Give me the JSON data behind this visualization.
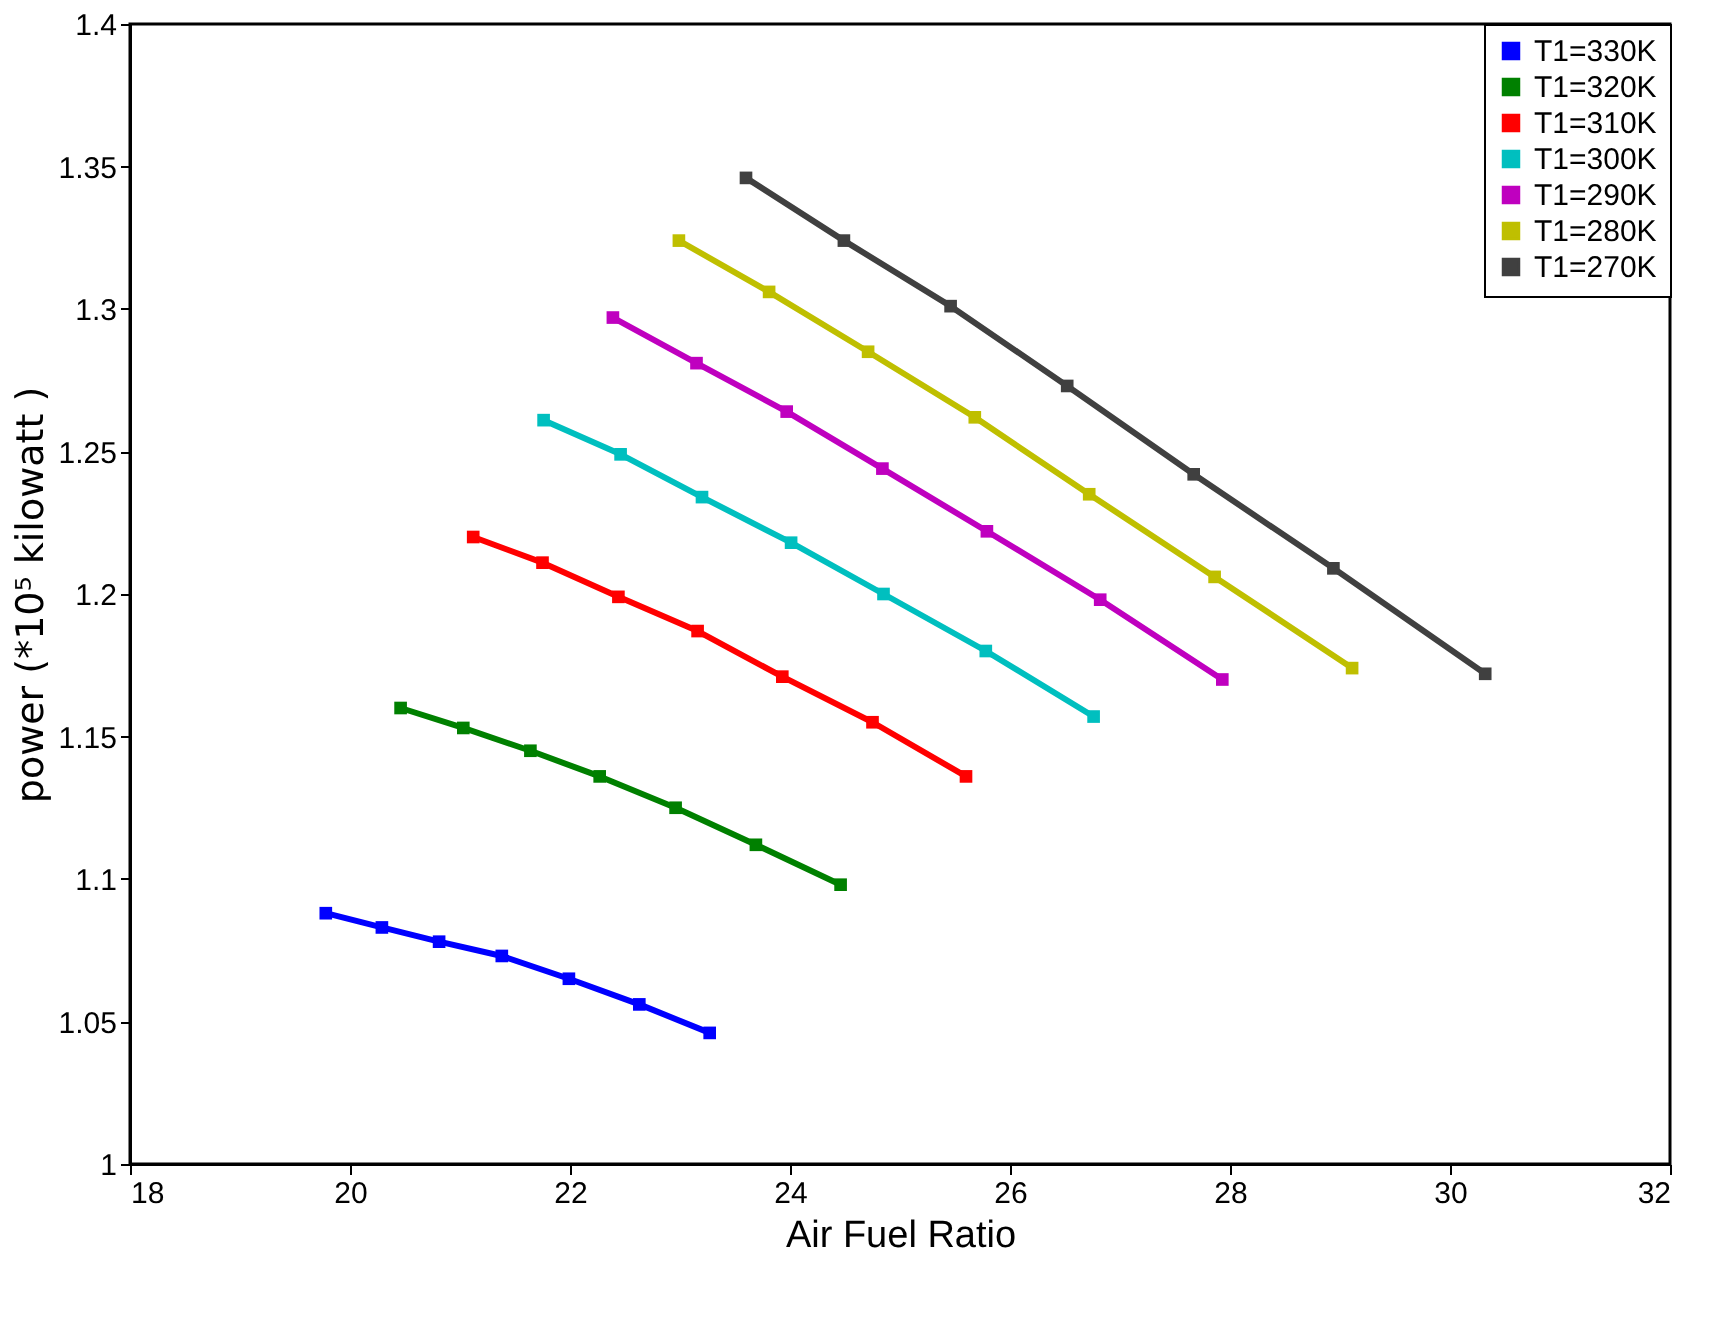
{
  "chart_data": {
    "type": "line",
    "xlabel": "Air Fuel Ratio",
    "ylabel": "power (*10⁵ kilowatt )",
    "xlim": [
      18,
      32
    ],
    "xticks": [
      18,
      20,
      22,
      24,
      26,
      28,
      30,
      32
    ],
    "ylim": [
      1,
      1.4
    ],
    "yticks": [
      1,
      1.05,
      1.1,
      1.15,
      1.2,
      1.25,
      1.3,
      1.35,
      1.4
    ],
    "grid": false,
    "legend": "top right",
    "marker": "square",
    "line_style": "solid",
    "series": [
      {
        "name": "T1=330K",
        "color": "#0000ff",
        "x": [
          19.78,
          20.29,
          20.81,
          21.38,
          21.99,
          22.63,
          23.27
        ],
        "values": [
          1.088,
          1.083,
          1.078,
          1.073,
          1.065,
          1.056,
          1.046
        ]
      },
      {
        "name": "T1=320K",
        "color": "#008000",
        "x": [
          20.46,
          21.03,
          21.64,
          22.27,
          22.96,
          23.69,
          24.46
        ],
        "values": [
          1.16,
          1.153,
          1.145,
          1.136,
          1.125,
          1.112,
          1.098
        ]
      },
      {
        "name": "T1=310K",
        "color": "#ff0000",
        "x": [
          21.12,
          21.75,
          22.44,
          23.16,
          23.93,
          24.75,
          25.6
        ],
        "values": [
          1.22,
          1.211,
          1.199,
          1.187,
          1.171,
          1.155,
          1.136
        ]
      },
      {
        "name": "T1=300K",
        "color": "#00bfbf",
        "x": [
          21.76,
          22.46,
          23.2,
          24.01,
          24.85,
          25.78,
          26.76
        ],
        "values": [
          1.261,
          1.249,
          1.234,
          1.218,
          1.2,
          1.18,
          1.157
        ]
      },
      {
        "name": "T1=290K",
        "color": "#bf00bf",
        "x": [
          22.39,
          23.15,
          23.97,
          24.84,
          25.79,
          26.82,
          27.93
        ],
        "values": [
          1.297,
          1.281,
          1.264,
          1.244,
          1.222,
          1.198,
          1.17
        ]
      },
      {
        "name": "T1=280K",
        "color": "#bfbf00",
        "x": [
          22.99,
          23.81,
          24.71,
          25.68,
          26.72,
          27.86,
          29.11
        ],
        "values": [
          1.324,
          1.306,
          1.285,
          1.262,
          1.235,
          1.206,
          1.174
        ]
      },
      {
        "name": "T1=270K",
        "color": "#404040",
        "x": [
          23.6,
          24.49,
          25.46,
          26.52,
          27.67,
          28.94,
          30.32
        ],
        "values": [
          1.346,
          1.324,
          1.301,
          1.273,
          1.242,
          1.209,
          1.172
        ]
      }
    ]
  }
}
